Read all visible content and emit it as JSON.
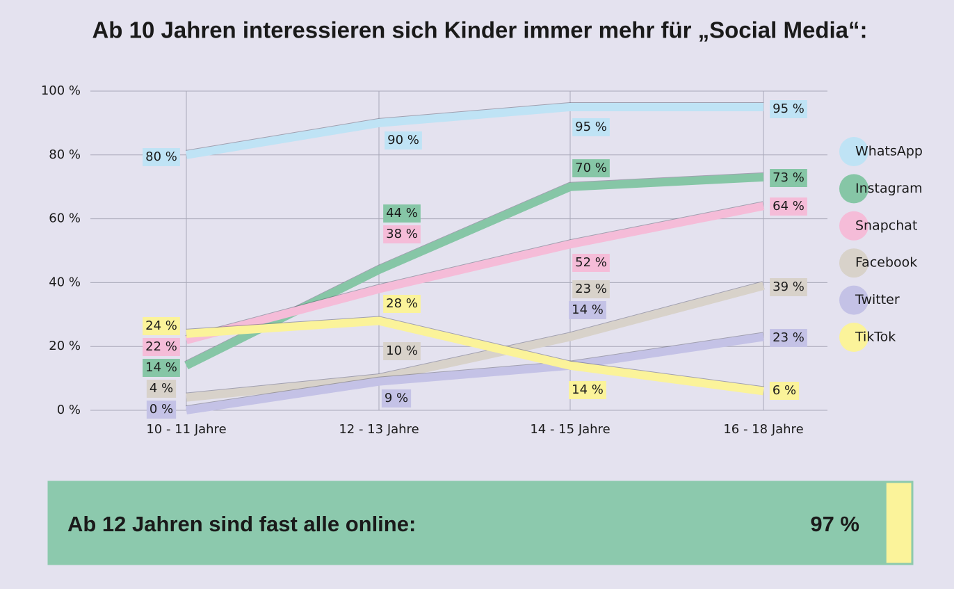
{
  "chart_data": {
    "type": "line",
    "title": "Ab 10 Jahren interessieren sich Kinder immer mehr für „Social Media“:",
    "categories": [
      "10 - 11 Jahre",
      "12 - 13 Jahre",
      "14 - 15 Jahre",
      "16 - 18 Jahre"
    ],
    "ylim": [
      0,
      100
    ],
    "yticks": [
      {
        "value": 0,
        "label": "0 %"
      },
      {
        "value": 20,
        "label": "20 %"
      },
      {
        "value": 40,
        "label": "40 %"
      },
      {
        "value": 60,
        "label": "60 %"
      },
      {
        "value": 80,
        "label": "80 %"
      },
      {
        "value": 100,
        "label": "100 %"
      }
    ],
    "grid": true,
    "legend": "right",
    "series": [
      {
        "name": "WhatsApp",
        "color": "#bfe3f5",
        "values": [
          80,
          90,
          95,
          95
        ],
        "value_labels": [
          "80 %",
          "90 %",
          "95 %",
          "95 %"
        ]
      },
      {
        "name": "Instagram",
        "color": "#86c6a6",
        "values": [
          14,
          44,
          70,
          73
        ],
        "value_labels": [
          "14 %",
          "44 %",
          "70 %",
          "73 %"
        ]
      },
      {
        "name": "Snapchat",
        "color": "#f5bcd8",
        "values": [
          22,
          38,
          52,
          64
        ],
        "value_labels": [
          "22 %",
          "38 %",
          "52 %",
          "64 %"
        ]
      },
      {
        "name": "Facebook",
        "color": "#d8d2ca",
        "values": [
          4,
          10,
          23,
          39
        ],
        "value_labels": [
          "4 %",
          "10 %",
          "23 %",
          "39 %"
        ]
      },
      {
        "name": "Twitter",
        "color": "#c4c2e6",
        "values": [
          0,
          9,
          14,
          23
        ],
        "value_labels": [
          "0 %",
          "9 %",
          "14 %",
          "23 %"
        ]
      },
      {
        "name": "TikTok",
        "color": "#fbf39a",
        "values": [
          24,
          28,
          14,
          6
        ],
        "value_labels": [
          "24 %",
          "28 %",
          "14 %",
          "6 %"
        ]
      }
    ]
  },
  "banner": {
    "text": "Ab 12 Jahren sind fast alle online:",
    "value": 97,
    "value_label": "97 %",
    "xlim": [
      0,
      100
    ],
    "color": "#8cc9ad",
    "rest_color": "#fbf39a"
  }
}
